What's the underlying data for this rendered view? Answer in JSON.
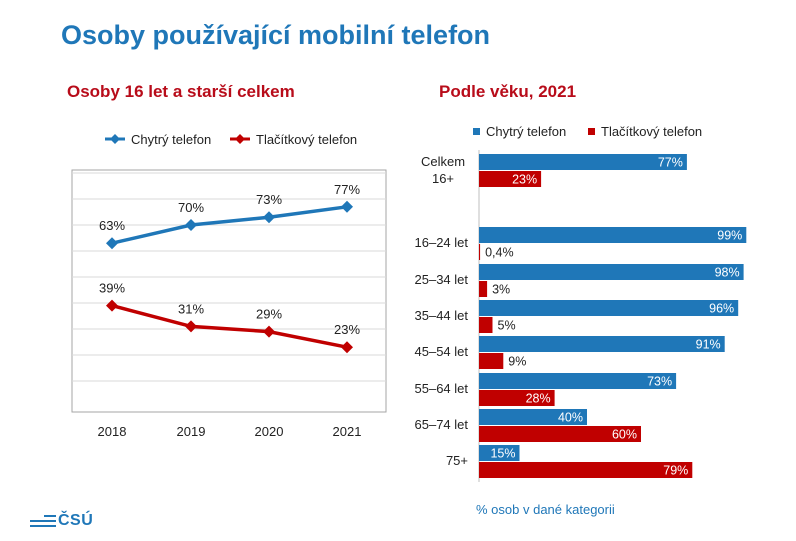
{
  "title": "Osoby používající mobilní telefon",
  "left_subtitle": "Osoby 16 let a starší celkem",
  "right_subtitle": "Podle věku, 2021",
  "footnote": "% osob v dané kategorii",
  "logo_text": "ČSÚ",
  "colors": {
    "title": "#1f77b8",
    "subtitle": "#b80c1a",
    "smart": "#1f77b8",
    "button": "#c00000"
  },
  "chart_data": [
    {
      "type": "line",
      "title": "Osoby 16 let a starší celkem",
      "x": [
        "2018",
        "2019",
        "2020",
        "2021"
      ],
      "ylim": [
        0,
        100
      ],
      "grid": true,
      "legend": "top",
      "series": [
        {
          "name": "Chytrý telefon",
          "values": [
            63,
            70,
            73,
            77
          ],
          "labels": [
            "63%",
            "70%",
            "73%",
            "77%"
          ],
          "color": "#1f77b8",
          "marker": "diamond"
        },
        {
          "name": "Tlačítkový telefon",
          "values": [
            39,
            31,
            29,
            23
          ],
          "labels": [
            "39%",
            "31%",
            "29%",
            "23%"
          ],
          "color": "#c00000",
          "marker": "diamond"
        }
      ]
    },
    {
      "type": "bar",
      "orientation": "horizontal",
      "title": "Podle věku, 2021",
      "categories": [
        [
          "Celkem",
          "16+"
        ],
        [
          "16–24 let"
        ],
        [
          "25–34 let"
        ],
        [
          "35–44 let"
        ],
        [
          "45–54 let"
        ],
        [
          "55–64 let"
        ],
        [
          "65–74 let"
        ],
        [
          "75+"
        ]
      ],
      "legend": "top",
      "xlim": [
        0,
        100
      ],
      "series": [
        {
          "name": "Chytrý telefon",
          "values": [
            77,
            99,
            98,
            96,
            91,
            73,
            40,
            15
          ],
          "labels": [
            "77%",
            "99%",
            "98%",
            "96%",
            "91%",
            "73%",
            "40%",
            "15%"
          ],
          "color": "#1f77b8"
        },
        {
          "name": "Tlačítkový telefon",
          "values": [
            23,
            0.4,
            3,
            5,
            9,
            28,
            60,
            79
          ],
          "labels": [
            "23%",
            "0,4%",
            "3%",
            "5%",
            "9%",
            "28%",
            "60%",
            "79%"
          ],
          "color": "#c00000"
        }
      ]
    }
  ]
}
